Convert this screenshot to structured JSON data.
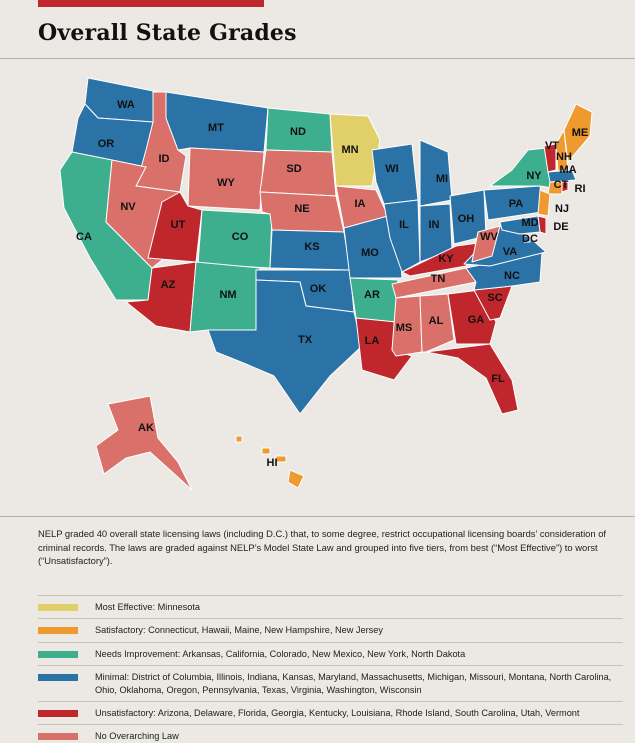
{
  "title": "Overall State Grades",
  "colors": {
    "most_effective": "#e1cf6a",
    "satisfactory": "#ee9a2e",
    "needs_improvement": "#3daf8e",
    "minimal": "#2b73a6",
    "unsatisfactory": "#c0272d",
    "no_law": "#d9706a",
    "background": "#ece8e3",
    "accent_bar": "#c0272d"
  },
  "map": {
    "states": [
      {
        "abbr": "WA",
        "tier": "minimal"
      },
      {
        "abbr": "OR",
        "tier": "minimal"
      },
      {
        "abbr": "CA",
        "tier": "needs_improvement"
      },
      {
        "abbr": "ID",
        "tier": "no_law"
      },
      {
        "abbr": "NV",
        "tier": "no_law"
      },
      {
        "abbr": "MT",
        "tier": "minimal"
      },
      {
        "abbr": "WY",
        "tier": "no_law"
      },
      {
        "abbr": "UT",
        "tier": "unsatisfactory"
      },
      {
        "abbr": "CO",
        "tier": "needs_improvement"
      },
      {
        "abbr": "AZ",
        "tier": "unsatisfactory"
      },
      {
        "abbr": "NM",
        "tier": "needs_improvement"
      },
      {
        "abbr": "ND",
        "tier": "needs_improvement"
      },
      {
        "abbr": "SD",
        "tier": "no_law"
      },
      {
        "abbr": "NE",
        "tier": "no_law"
      },
      {
        "abbr": "KS",
        "tier": "minimal"
      },
      {
        "abbr": "OK",
        "tier": "minimal"
      },
      {
        "abbr": "TX",
        "tier": "minimal"
      },
      {
        "abbr": "MN",
        "tier": "most_effective"
      },
      {
        "abbr": "IA",
        "tier": "no_law"
      },
      {
        "abbr": "MO",
        "tier": "minimal"
      },
      {
        "abbr": "AR",
        "tier": "needs_improvement"
      },
      {
        "abbr": "LA",
        "tier": "unsatisfactory"
      },
      {
        "abbr": "WI",
        "tier": "minimal"
      },
      {
        "abbr": "IL",
        "tier": "minimal"
      },
      {
        "abbr": "MI",
        "tier": "minimal"
      },
      {
        "abbr": "IN",
        "tier": "minimal"
      },
      {
        "abbr": "OH",
        "tier": "minimal"
      },
      {
        "abbr": "KY",
        "tier": "unsatisfactory"
      },
      {
        "abbr": "TN",
        "tier": "no_law"
      },
      {
        "abbr": "MS",
        "tier": "no_law"
      },
      {
        "abbr": "AL",
        "tier": "no_law"
      },
      {
        "abbr": "GA",
        "tier": "unsatisfactory"
      },
      {
        "abbr": "FL",
        "tier": "unsatisfactory"
      },
      {
        "abbr": "SC",
        "tier": "unsatisfactory"
      },
      {
        "abbr": "NC",
        "tier": "minimal"
      },
      {
        "abbr": "VA",
        "tier": "minimal"
      },
      {
        "abbr": "WV",
        "tier": "no_law"
      },
      {
        "abbr": "PA",
        "tier": "minimal"
      },
      {
        "abbr": "NY",
        "tier": "needs_improvement"
      },
      {
        "abbr": "VT",
        "tier": "unsatisfactory"
      },
      {
        "abbr": "NH",
        "tier": "satisfactory"
      },
      {
        "abbr": "ME",
        "tier": "satisfactory"
      },
      {
        "abbr": "MA",
        "tier": "minimal"
      },
      {
        "abbr": "CT",
        "tier": "satisfactory"
      },
      {
        "abbr": "RI",
        "tier": "unsatisfactory"
      },
      {
        "abbr": "NJ",
        "tier": "satisfactory"
      },
      {
        "abbr": "DE",
        "tier": "unsatisfactory"
      },
      {
        "abbr": "MD",
        "tier": "minimal"
      },
      {
        "abbr": "DC",
        "tier": "minimal"
      },
      {
        "abbr": "AK",
        "tier": "no_law"
      },
      {
        "abbr": "HI",
        "tier": "satisfactory"
      }
    ]
  },
  "description": "NELP graded 40 overall state licensing laws (including D.C.) that, to some degree, restrict occupational licensing boards’ consideration of criminal records. The laws are graded against NELP’s Model State Law and grouped into five tiers, from best (“Most Effective”) to worst (“Unsatisfactory”).",
  "legend": [
    {
      "tier": "most_effective",
      "text": "Most Effective: Minnesota"
    },
    {
      "tier": "satisfactory",
      "text": "Satisfactory: Connecticut, Hawaii, Maine, New Hampshire, New Jersey"
    },
    {
      "tier": "needs_improvement",
      "text": "Needs Improvement: Arkansas, California, Colorado, New Mexico, New York, North Dakota"
    },
    {
      "tier": "minimal",
      "text": "Minimal: District of Columbia, Illinois, Indiana, Kansas, Maryland, Massachusetts, Michigan, Missouri, Montana, North Carolina, Ohio, Oklahoma, Oregon, Pennsylvania, Texas, Virginia, Washington, Wisconsin"
    },
    {
      "tier": "unsatisfactory",
      "text": "Unsatisfactory: Arizona, Delaware, Florida, Georgia, Kentucky, Louisiana, Rhode Island, South Carolina, Utah, Vermont"
    },
    {
      "tier": "no_law",
      "text": "No Overarching Law"
    }
  ]
}
